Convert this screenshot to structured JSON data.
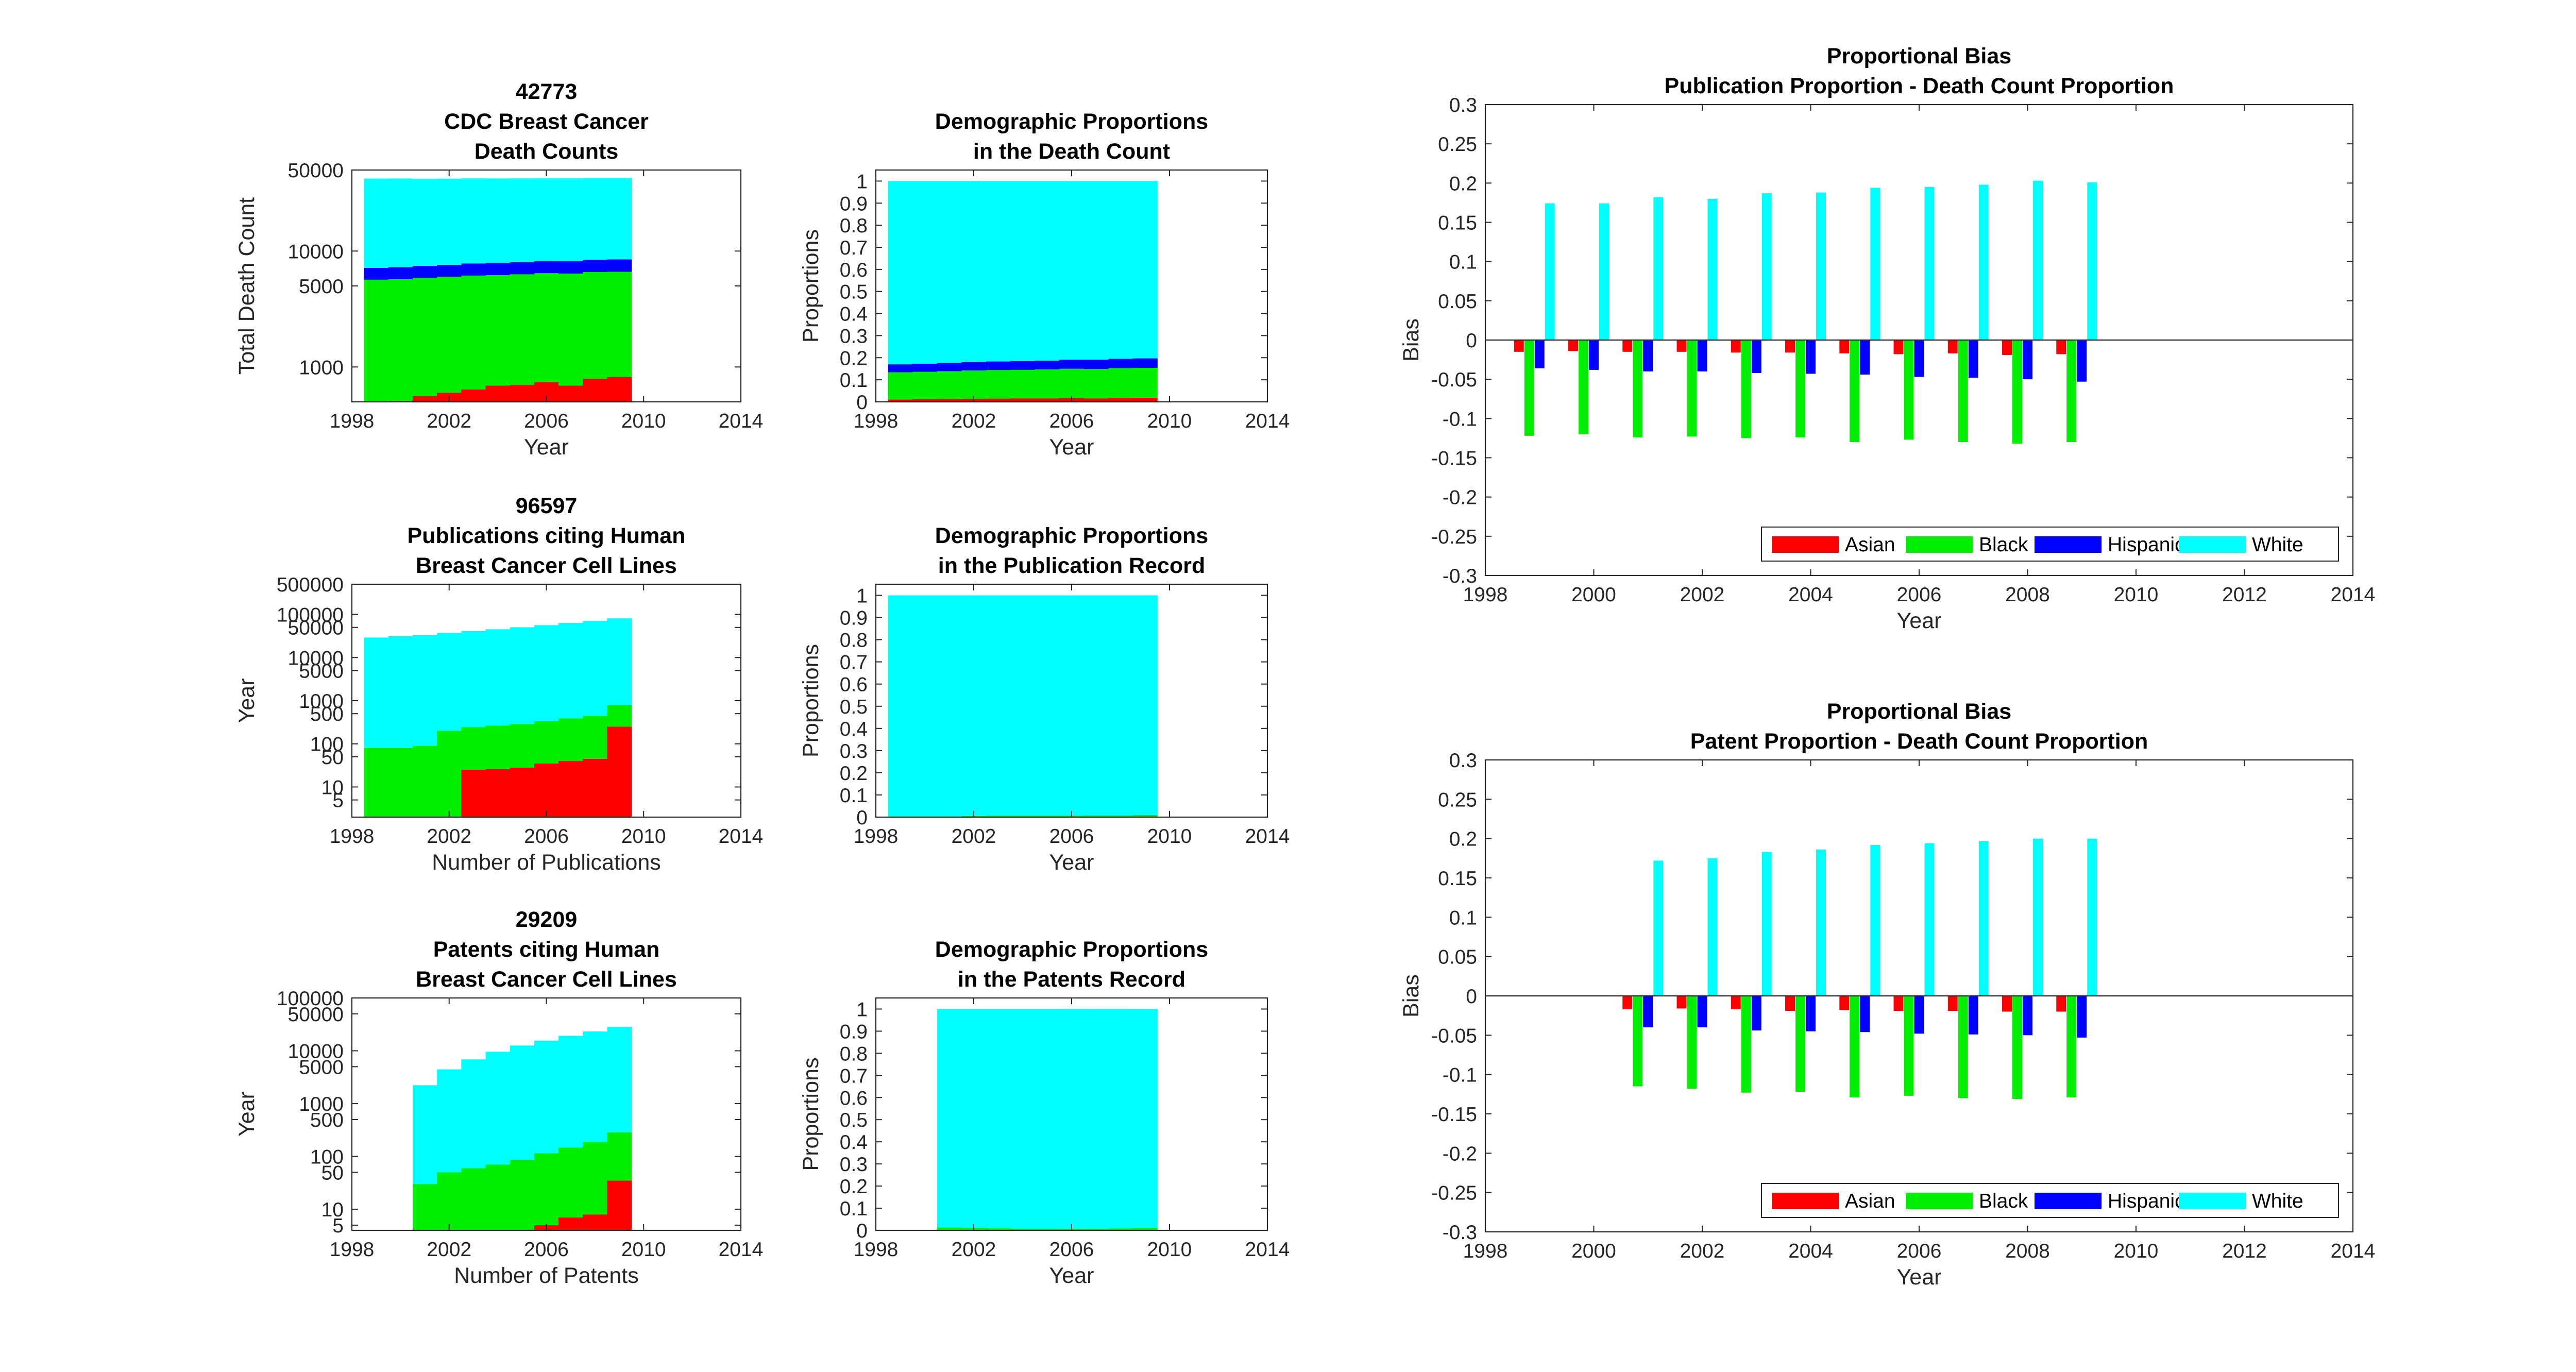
{
  "colors": {
    "asian": "#ff0000",
    "black": "#00ee00",
    "hispanic": "#0000ff",
    "white": "#00ffff"
  },
  "chart_data": [
    {
      "type": "area",
      "title": [
        "42773",
        "CDC Breast Cancer",
        "Death Counts"
      ],
      "xlabel": "Year",
      "ylabel": "Total Death Count",
      "yscale": "log",
      "ylim": [
        500,
        50000
      ],
      "xlim": [
        1998,
        2014
      ],
      "xticks": [
        1998,
        2002,
        2006,
        2010,
        2014
      ],
      "yticks": [
        1000,
        5000,
        10000,
        50000
      ],
      "x": [
        1999,
        2000,
        2001,
        2002,
        2003,
        2004,
        2005,
        2006,
        2007,
        2008,
        2009
      ],
      "series": [
        {
          "name": "Asian",
          "values": [
            460,
            510,
            560,
            600,
            640,
            690,
            700,
            740,
            690,
            790,
            820
          ]
        },
        {
          "name": "Black",
          "values": [
            5200,
            5200,
            5300,
            5400,
            5500,
            5500,
            5600,
            5700,
            5700,
            5800,
            5800
          ]
        },
        {
          "name": "Hispanic",
          "values": [
            1500,
            1550,
            1580,
            1600,
            1680,
            1700,
            1720,
            1750,
            1780,
            1820,
            1850
          ]
        },
        {
          "name": "White",
          "values": [
            35000,
            35000,
            34600,
            34500,
            34500,
            34400,
            34300,
            34200,
            34200,
            34200,
            34200
          ]
        }
      ]
    },
    {
      "type": "area",
      "title": [
        "Demographic Proportions",
        "in the Death Count"
      ],
      "xlabel": "Year",
      "ylabel": "Proportions",
      "ylim": [
        0,
        1.05
      ],
      "xlim": [
        1998,
        2014
      ],
      "xticks": [
        1998,
        2002,
        2006,
        2010,
        2014
      ],
      "yticks": [
        0,
        0.1,
        0.2,
        0.3,
        0.4,
        0.5,
        0.6,
        0.7,
        0.8,
        0.9,
        1
      ],
      "x": [
        1999,
        2000,
        2001,
        2002,
        2003,
        2004,
        2005,
        2006,
        2007,
        2008,
        2009
      ],
      "series": [
        {
          "name": "Asian",
          "values": [
            0.011,
            0.012,
            0.013,
            0.014,
            0.015,
            0.016,
            0.016,
            0.017,
            0.016,
            0.018,
            0.019
          ]
        },
        {
          "name": "Black",
          "values": [
            0.123,
            0.124,
            0.126,
            0.128,
            0.129,
            0.129,
            0.131,
            0.133,
            0.133,
            0.135,
            0.135
          ]
        },
        {
          "name": "Hispanic",
          "values": [
            0.036,
            0.037,
            0.038,
            0.038,
            0.039,
            0.04,
            0.04,
            0.041,
            0.042,
            0.042,
            0.043
          ]
        },
        {
          "name": "White",
          "values": [
            0.83,
            0.827,
            0.823,
            0.82,
            0.817,
            0.815,
            0.813,
            0.809,
            0.809,
            0.805,
            0.803
          ]
        }
      ]
    },
    {
      "type": "area",
      "title": [
        "96597",
        "Publications citing Human",
        "Breast Cancer Cell Lines"
      ],
      "xlabel": "Number of Publications",
      "ylabel": "Year",
      "yscale": "log",
      "ylim": [
        2,
        500000
      ],
      "xlim": [
        1998,
        2014
      ],
      "xticks": [
        1998,
        2002,
        2006,
        2010,
        2014
      ],
      "yticks": [
        5,
        10,
        50,
        100,
        500,
        1000,
        5000,
        10000,
        50000,
        100000,
        500000
      ],
      "x": [
        1999,
        2000,
        2001,
        2002,
        2003,
        2004,
        2005,
        2006,
        2007,
        2008,
        2009
      ],
      "series": [
        {
          "name": "Asian",
          "values": [
            0,
            0,
            0,
            0,
            25,
            26,
            28,
            35,
            40,
            45,
            250
          ]
        },
        {
          "name": "Black",
          "values": [
            80,
            80,
            90,
            200,
            220,
            240,
            260,
            300,
            350,
            400,
            550
          ]
        },
        {
          "name": "Hispanic",
          "values": [
            0,
            0,
            0,
            0,
            0,
            0,
            0,
            0,
            0,
            0,
            2
          ]
        },
        {
          "name": "White",
          "values": [
            29000,
            31000,
            33000,
            37000,
            41000,
            45000,
            50000,
            56000,
            63000,
            70000,
            80000
          ]
        }
      ]
    },
    {
      "type": "area",
      "title": [
        "Demographic Proportions",
        "in the Publication Record"
      ],
      "xlabel": "Year",
      "ylabel": "Proportions",
      "ylim": [
        0,
        1.05
      ],
      "xlim": [
        1998,
        2014
      ],
      "xticks": [
        1998,
        2002,
        2006,
        2010,
        2014
      ],
      "yticks": [
        0,
        0.1,
        0.2,
        0.3,
        0.4,
        0.5,
        0.6,
        0.7,
        0.8,
        0.9,
        1
      ],
      "x": [
        1999,
        2000,
        2001,
        2002,
        2003,
        2004,
        2005,
        2006,
        2007,
        2008,
        2009
      ],
      "series": [
        {
          "name": "Asian",
          "values": [
            0,
            0,
            0,
            0,
            0.001,
            0.001,
            0.001,
            0.001,
            0.001,
            0.001,
            0.003
          ]
        },
        {
          "name": "Black",
          "values": [
            0.003,
            0.003,
            0.003,
            0.005,
            0.005,
            0.005,
            0.005,
            0.005,
            0.006,
            0.006,
            0.007
          ]
        },
        {
          "name": "Hispanic",
          "values": [
            0,
            0,
            0,
            0,
            0,
            0,
            0,
            0,
            0,
            0,
            0
          ]
        },
        {
          "name": "White",
          "values": [
            0.997,
            0.997,
            0.997,
            0.995,
            0.994,
            0.994,
            0.994,
            0.994,
            0.993,
            0.993,
            0.99
          ]
        }
      ]
    },
    {
      "type": "area",
      "title": [
        "29209",
        "Patents citing Human",
        "Breast Cancer Cell Lines"
      ],
      "xlabel": "Number of Patents",
      "ylabel": "Year",
      "yscale": "log",
      "ylim": [
        4,
        100000
      ],
      "xlim": [
        1998,
        2014
      ],
      "xticks": [
        1998,
        2002,
        2006,
        2010,
        2014
      ],
      "yticks": [
        5,
        10,
        50,
        100,
        500,
        1000,
        5000,
        10000,
        50000,
        100000
      ],
      "x": [
        2001,
        2002,
        2003,
        2004,
        2005,
        2006,
        2007,
        2008,
        2009
      ],
      "series": [
        {
          "name": "Asian",
          "values": [
            0,
            0,
            0,
            0,
            0,
            5,
            7,
            8,
            35
          ]
        },
        {
          "name": "Black",
          "values": [
            30,
            50,
            60,
            70,
            85,
            110,
            140,
            180,
            250
          ]
        },
        {
          "name": "Hispanic",
          "values": [
            0,
            0,
            0,
            0,
            0,
            0,
            0,
            0,
            1
          ]
        },
        {
          "name": "White",
          "values": [
            2200,
            4400,
            6800,
            9500,
            12500,
            15500,
            19000,
            23000,
            28000
          ]
        }
      ]
    },
    {
      "type": "area",
      "title": [
        "Demographic Proportions",
        "in the Patents Record"
      ],
      "xlabel": "Year",
      "ylabel": "Proportions",
      "ylim": [
        0,
        1.05
      ],
      "xlim": [
        1998,
        2014
      ],
      "xticks": [
        1998,
        2002,
        2006,
        2010,
        2014
      ],
      "yticks": [
        0,
        0.1,
        0.2,
        0.3,
        0.4,
        0.5,
        0.6,
        0.7,
        0.8,
        0.9,
        1
      ],
      "x": [
        2001,
        2002,
        2003,
        2004,
        2005,
        2006,
        2007,
        2008,
        2009
      ],
      "series": [
        {
          "name": "Asian",
          "values": [
            0,
            0,
            0,
            0,
            0,
            0.0003,
            0.0004,
            0.0003,
            0.001
          ]
        },
        {
          "name": "Black",
          "values": [
            0.013,
            0.011,
            0.009,
            0.007,
            0.007,
            0.007,
            0.007,
            0.008,
            0.009
          ]
        },
        {
          "name": "Hispanic",
          "values": [
            0,
            0,
            0,
            0,
            0,
            0,
            0,
            0,
            0
          ]
        },
        {
          "name": "White",
          "values": [
            0.987,
            0.989,
            0.991,
            0.993,
            0.993,
            0.993,
            0.993,
            0.992,
            0.99
          ]
        }
      ]
    },
    {
      "type": "bar",
      "title": [
        "Proportional Bias",
        "Publication Proportion - Death Count Proportion"
      ],
      "xlabel": "Year",
      "ylabel": "Bias",
      "ylim": [
        -0.3,
        0.3
      ],
      "xlim": [
        1998,
        2014
      ],
      "xticks": [
        1998,
        2000,
        2002,
        2004,
        2006,
        2008,
        2010,
        2012,
        2014
      ],
      "yticks": [
        -0.3,
        -0.25,
        -0.2,
        -0.15,
        -0.1,
        -0.05,
        0,
        0.05,
        0.1,
        0.15,
        0.2,
        0.25,
        0.3
      ],
      "legend": {
        "position": "bottom-right",
        "entries": [
          "Asian",
          "Black",
          "Hispanic",
          "White"
        ]
      },
      "x": [
        1999,
        2000,
        2001,
        2002,
        2003,
        2004,
        2005,
        2006,
        2007,
        2008,
        2009
      ],
      "series": [
        {
          "name": "Asian",
          "values": [
            -0.015,
            -0.014,
            -0.015,
            -0.015,
            -0.016,
            -0.016,
            -0.017,
            -0.018,
            -0.017,
            -0.019,
            -0.018
          ]
        },
        {
          "name": "Black",
          "values": [
            -0.122,
            -0.12,
            -0.124,
            -0.123,
            -0.125,
            -0.124,
            -0.13,
            -0.127,
            -0.13,
            -0.132,
            -0.13
          ]
        },
        {
          "name": "Hispanic",
          "values": [
            -0.036,
            -0.038,
            -0.04,
            -0.04,
            -0.042,
            -0.043,
            -0.044,
            -0.047,
            -0.048,
            -0.05,
            -0.053
          ]
        },
        {
          "name": "White",
          "values": [
            0.174,
            0.174,
            0.182,
            0.18,
            0.187,
            0.188,
            0.194,
            0.195,
            0.198,
            0.203,
            0.201
          ]
        }
      ]
    },
    {
      "type": "bar",
      "title": [
        "Proportional Bias",
        "Patent Proportion - Death Count Proportion"
      ],
      "xlabel": "Year",
      "ylabel": "Bias",
      "ylim": [
        -0.3,
        0.3
      ],
      "xlim": [
        1998,
        2014
      ],
      "xticks": [
        1998,
        2000,
        2002,
        2004,
        2006,
        2008,
        2010,
        2012,
        2014
      ],
      "yticks": [
        -0.3,
        -0.25,
        -0.2,
        -0.15,
        -0.1,
        -0.05,
        0,
        0.05,
        0.1,
        0.15,
        0.2,
        0.25,
        0.3
      ],
      "legend": {
        "position": "bottom-right",
        "entries": [
          "Asian",
          "Black",
          "Hispanic",
          "White"
        ]
      },
      "x": [
        2001,
        2002,
        2003,
        2004,
        2005,
        2006,
        2007,
        2008,
        2009
      ],
      "series": [
        {
          "name": "Asian",
          "values": [
            -0.017,
            -0.016,
            -0.017,
            -0.019,
            -0.018,
            -0.019,
            -0.019,
            -0.02,
            -0.02
          ]
        },
        {
          "name": "Black",
          "values": [
            -0.115,
            -0.118,
            -0.123,
            -0.122,
            -0.129,
            -0.127,
            -0.13,
            -0.131,
            -0.129
          ]
        },
        {
          "name": "Hispanic",
          "values": [
            -0.04,
            -0.04,
            -0.044,
            -0.045,
            -0.046,
            -0.048,
            -0.049,
            -0.05,
            -0.053
          ]
        },
        {
          "name": "White",
          "values": [
            0.172,
            0.175,
            0.183,
            0.186,
            0.192,
            0.194,
            0.197,
            0.2,
            0.2
          ]
        }
      ]
    }
  ]
}
